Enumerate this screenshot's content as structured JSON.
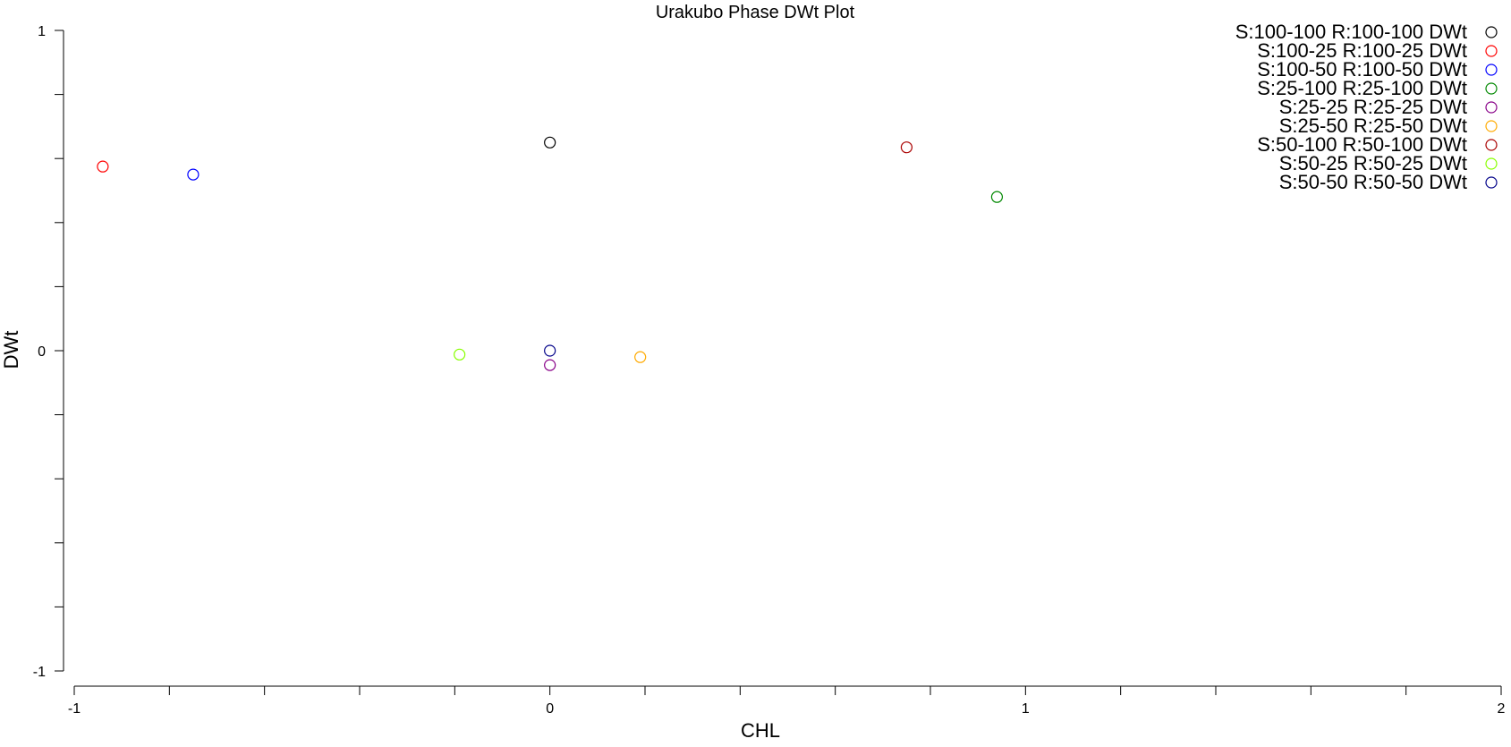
{
  "chart_data": {
    "type": "scatter",
    "title": "Urakubo Phase DWt Plot",
    "xlabel": "CHL",
    "ylabel": "DWt",
    "xlim": [
      -1,
      2
    ],
    "ylim": [
      -1,
      1
    ],
    "x_ticks": [
      "-1",
      "0",
      "1",
      "2"
    ],
    "y_ticks": [
      "-1",
      "0",
      "1"
    ],
    "grid": false,
    "legend_position": "top-right",
    "series": [
      {
        "name": "S:100-100 R:100-100 DWt",
        "color": "#000000",
        "x": [
          0.0
        ],
        "y": [
          0.65
        ]
      },
      {
        "name": "S:100-25 R:100-25 DWt",
        "color": "#ff0000",
        "x": [
          -0.94
        ],
        "y": [
          0.575
        ]
      },
      {
        "name": "S:100-50 R:100-50 DWt",
        "color": "#0000ff",
        "x": [
          -0.75
        ],
        "y": [
          0.55
        ]
      },
      {
        "name": "S:25-100 R:25-100 DWt",
        "color": "#008800",
        "x": [
          0.94
        ],
        "y": [
          0.48
        ]
      },
      {
        "name": "S:25-25 R:25-25 DWt",
        "color": "#880088",
        "x": [
          0.0
        ],
        "y": [
          -0.045
        ]
      },
      {
        "name": "S:25-50 R:25-50 DWt",
        "color": "#ffaa00",
        "x": [
          0.19
        ],
        "y": [
          -0.02
        ]
      },
      {
        "name": "S:50-100 R:50-100 DWt",
        "color": "#aa0000",
        "x": [
          0.75
        ],
        "y": [
          0.635
        ]
      },
      {
        "name": "S:50-25 R:50-25 DWt",
        "color": "#88ff00",
        "x": [
          -0.19
        ],
        "y": [
          -0.012
        ]
      },
      {
        "name": "S:50-50 R:50-50 DWt",
        "color": "#000088",
        "x": [
          0.0
        ],
        "y": [
          0.0
        ]
      }
    ]
  }
}
